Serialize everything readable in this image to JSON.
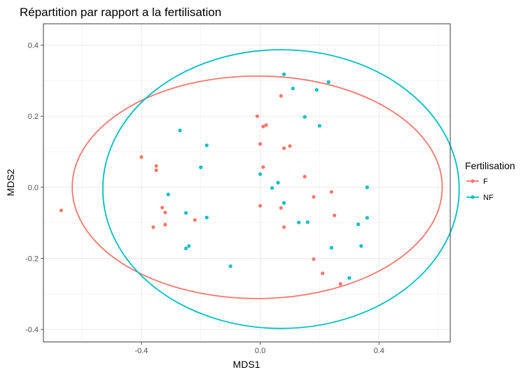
{
  "chart_data": {
    "type": "scatter",
    "title": "Répartition par rapport a la fertilisation",
    "xlabel": "MDS1",
    "ylabel": "MDS2",
    "xlim": [
      -0.73,
      0.64
    ],
    "ylim": [
      -0.435,
      0.46
    ],
    "xticks": [
      -0.4,
      0.0,
      0.4
    ],
    "yticks": [
      -0.4,
      -0.2,
      0.0,
      0.2,
      0.4
    ],
    "xtick_labels": [
      "-0.4",
      "0.0",
      "0.4"
    ],
    "ytick_labels": [
      "-0.4",
      "-0.2",
      "0.0",
      "0.2",
      "0.4"
    ],
    "grid": true,
    "legend": {
      "title": "Fertilisation",
      "placement": "right",
      "entries": [
        "F",
        "NF"
      ]
    },
    "series": [
      {
        "name": "F",
        "color": "#F8766D",
        "points": [
          [
            -0.67,
            -0.065
          ],
          [
            -0.4,
            0.085
          ],
          [
            -0.35,
            0.06
          ],
          [
            -0.35,
            0.048
          ],
          [
            -0.36,
            -0.112
          ],
          [
            -0.33,
            -0.057
          ],
          [
            -0.32,
            -0.071
          ],
          [
            -0.32,
            -0.105
          ],
          [
            -0.22,
            -0.092
          ],
          [
            -0.01,
            0.2
          ],
          [
            0.0,
            0.122
          ],
          [
            0.01,
            0.057
          ],
          [
            0.01,
            0.171
          ],
          [
            0.02,
            0.175
          ],
          [
            0.0,
            -0.052
          ],
          [
            0.07,
            0.257
          ],
          [
            0.08,
            0.11
          ],
          [
            0.1,
            0.116
          ],
          [
            0.07,
            -0.058
          ],
          [
            0.08,
            -0.112
          ],
          [
            0.15,
            0.03
          ],
          [
            0.18,
            -0.027
          ],
          [
            0.18,
            -0.202
          ],
          [
            0.21,
            -0.242
          ],
          [
            0.24,
            -0.013
          ],
          [
            0.25,
            -0.079
          ],
          [
            0.27,
            -0.272
          ]
        ],
        "ellipse": {
          "center": [
            -0.01,
            0.0
          ],
          "rx": 0.623,
          "ry": 0.313
        }
      },
      {
        "name": "NF",
        "color": "#00BFC4",
        "points": [
          [
            -0.27,
            0.16
          ],
          [
            -0.18,
            0.118
          ],
          [
            -0.2,
            0.056
          ],
          [
            -0.31,
            -0.02
          ],
          [
            -0.25,
            -0.072
          ],
          [
            -0.18,
            -0.085
          ],
          [
            -0.25,
            -0.172
          ],
          [
            -0.24,
            -0.165
          ],
          [
            -0.1,
            -0.222
          ],
          [
            0.0,
            0.037
          ],
          [
            0.04,
            -0.002
          ],
          [
            0.06,
            0.013
          ],
          [
            0.08,
            -0.044
          ],
          [
            0.08,
            0.318
          ],
          [
            0.11,
            0.278
          ],
          [
            0.13,
            -0.099
          ],
          [
            0.15,
            0.198
          ],
          [
            0.16,
            -0.098
          ],
          [
            0.19,
            0.274
          ],
          [
            0.2,
            0.173
          ],
          [
            0.23,
            0.296
          ],
          [
            0.24,
            -0.17
          ],
          [
            0.3,
            -0.255
          ],
          [
            0.33,
            -0.104
          ],
          [
            0.34,
            -0.165
          ],
          [
            0.36,
            -0.086
          ],
          [
            0.36,
            0.0
          ]
        ],
        "ellipse": {
          "center": [
            0.07,
            -0.005
          ],
          "rx": 0.6,
          "ry": 0.392
        }
      }
    ]
  }
}
